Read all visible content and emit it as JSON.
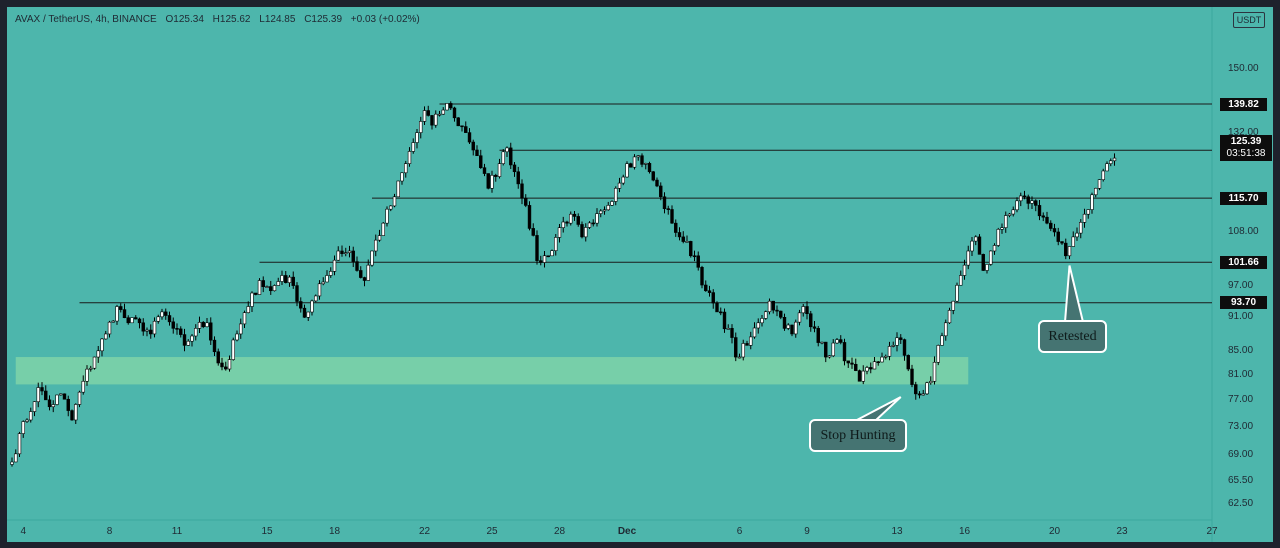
{
  "header": {
    "symbol": "AVAX / TetherUS, 4h, BINANCE",
    "open": "O125.34",
    "high": "H125.62",
    "low": "L124.85",
    "close": "C125.39",
    "change": "+0.03 (+0.02%)"
  },
  "currency_badge": "USDT",
  "colors": {
    "background": "#4db6ac",
    "zone": "#7fd3a8",
    "candle_up": "#ffffff",
    "candle_down": "#000000",
    "level_line": "#1a1a1a",
    "label_bg": "#0d0d0d"
  },
  "current_price": {
    "value": "125.39",
    "countdown": "03:51:38"
  },
  "annotations": {
    "stop_hunting": "Stop Hunting",
    "retested": "Retested"
  },
  "chart_data": {
    "type": "candlestick",
    "title": "",
    "xlabel": "",
    "ylabel": "",
    "ylim": [
      60.5,
      170
    ],
    "y_scale": "log",
    "y_ticks": [
      "150.00",
      "132.00",
      "108.00",
      "102.00",
      "97.00",
      "91.00",
      "85.00",
      "81.00",
      "77.00",
      "73.00",
      "69.00",
      "65.50",
      "62.50"
    ],
    "x_ticks": [
      {
        "label": "4",
        "index": 3
      },
      {
        "label": "8",
        "index": 26
      },
      {
        "label": "11",
        "index": 44
      },
      {
        "label": "15",
        "index": 68
      },
      {
        "label": "18",
        "index": 86
      },
      {
        "label": "22",
        "index": 110
      },
      {
        "label": "25",
        "index": 128
      },
      {
        "label": "28",
        "index": 146
      },
      {
        "label": "Dec",
        "index": 164,
        "bold": true
      },
      {
        "label": "6",
        "index": 194
      },
      {
        "label": "9",
        "index": 212
      },
      {
        "label": "13",
        "index": 236
      },
      {
        "label": "16",
        "index": 254
      },
      {
        "label": "20",
        "index": 278
      },
      {
        "label": "23",
        "index": 296
      },
      {
        "label": "27",
        "index": 320
      }
    ],
    "levels": [
      {
        "label": "139.82",
        "value": 139.82,
        "from_index": 114
      },
      {
        "label": "127.41",
        "value": 127.41,
        "from_index": 130
      },
      {
        "label": "115.70",
        "value": 115.7,
        "from_index": 96
      },
      {
        "label": "101.66",
        "value": 101.66,
        "from_index": 66
      },
      {
        "label": "93.70",
        "value": 93.7,
        "from_index": 18
      }
    ],
    "zone": {
      "from_index": 1,
      "to_index": 255,
      "low": 79.5,
      "high": 84.0
    },
    "callouts": [
      {
        "key": "stop_hunting",
        "point_index": 237,
        "point_value": 77.5
      },
      {
        "key": "retested",
        "point_index": 282,
        "point_value": 101.0
      }
    ],
    "anchors": [
      [
        0,
        68
      ],
      [
        2,
        72
      ],
      [
        4,
        74
      ],
      [
        7,
        79
      ],
      [
        10,
        76
      ],
      [
        13,
        78
      ],
      [
        16,
        74
      ],
      [
        19,
        80
      ],
      [
        22,
        84
      ],
      [
        25,
        88
      ],
      [
        28,
        93
      ],
      [
        31,
        90
      ],
      [
        34,
        90
      ],
      [
        37,
        88
      ],
      [
        40,
        92
      ],
      [
        43,
        89
      ],
      [
        46,
        86
      ],
      [
        49,
        89
      ],
      [
        52,
        90
      ],
      [
        55,
        83
      ],
      [
        57,
        82
      ],
      [
        60,
        88
      ],
      [
        63,
        93
      ],
      [
        66,
        98
      ],
      [
        69,
        96
      ],
      [
        72,
        99
      ],
      [
        75,
        97
      ],
      [
        78,
        91
      ],
      [
        81,
        95
      ],
      [
        84,
        99
      ],
      [
        87,
        104
      ],
      [
        90,
        104
      ],
      [
        92,
        100
      ],
      [
        94,
        98
      ],
      [
        96,
        104
      ],
      [
        99,
        110
      ],
      [
        102,
        116
      ],
      [
        105,
        124
      ],
      [
        108,
        132
      ],
      [
        110,
        138
      ],
      [
        112,
        134
      ],
      [
        114,
        137
      ],
      [
        116,
        140
      ],
      [
        118,
        136
      ],
      [
        121,
        132
      ],
      [
        124,
        126
      ],
      [
        127,
        118
      ],
      [
        130,
        124
      ],
      [
        132,
        128
      ],
      [
        134,
        122
      ],
      [
        137,
        114
      ],
      [
        140,
        102
      ],
      [
        143,
        103
      ],
      [
        146,
        109
      ],
      [
        149,
        112
      ],
      [
        152,
        107
      ],
      [
        155,
        110
      ],
      [
        158,
        113
      ],
      [
        161,
        118
      ],
      [
        164,
        124
      ],
      [
        167,
        126
      ],
      [
        170,
        122
      ],
      [
        173,
        116
      ],
      [
        176,
        110
      ],
      [
        179,
        106
      ],
      [
        182,
        103
      ],
      [
        185,
        96
      ],
      [
        188,
        92
      ],
      [
        191,
        89
      ],
      [
        193,
        84
      ],
      [
        196,
        86
      ],
      [
        199,
        90
      ],
      [
        202,
        94
      ],
      [
        205,
        91
      ],
      [
        208,
        88
      ],
      [
        211,
        93
      ],
      [
        214,
        89
      ],
      [
        217,
        84
      ],
      [
        220,
        87
      ],
      [
        223,
        83
      ],
      [
        226,
        80
      ],
      [
        229,
        82
      ],
      [
        232,
        84
      ],
      [
        235,
        86
      ],
      [
        237,
        87
      ],
      [
        239,
        82
      ],
      [
        241,
        78
      ],
      [
        243,
        78
      ],
      [
        245,
        80
      ],
      [
        247,
        86
      ],
      [
        249,
        90
      ],
      [
        251,
        94
      ],
      [
        253,
        99
      ],
      [
        255,
        104
      ],
      [
        257,
        107
      ],
      [
        259,
        100
      ],
      [
        261,
        104
      ],
      [
        264,
        109
      ],
      [
        267,
        113
      ],
      [
        270,
        116
      ],
      [
        273,
        114
      ],
      [
        276,
        110
      ],
      [
        279,
        106
      ],
      [
        281,
        103
      ],
      [
        283,
        107
      ],
      [
        286,
        112
      ],
      [
        289,
        118
      ],
      [
        292,
        124
      ],
      [
        294,
        125.4
      ]
    ]
  }
}
